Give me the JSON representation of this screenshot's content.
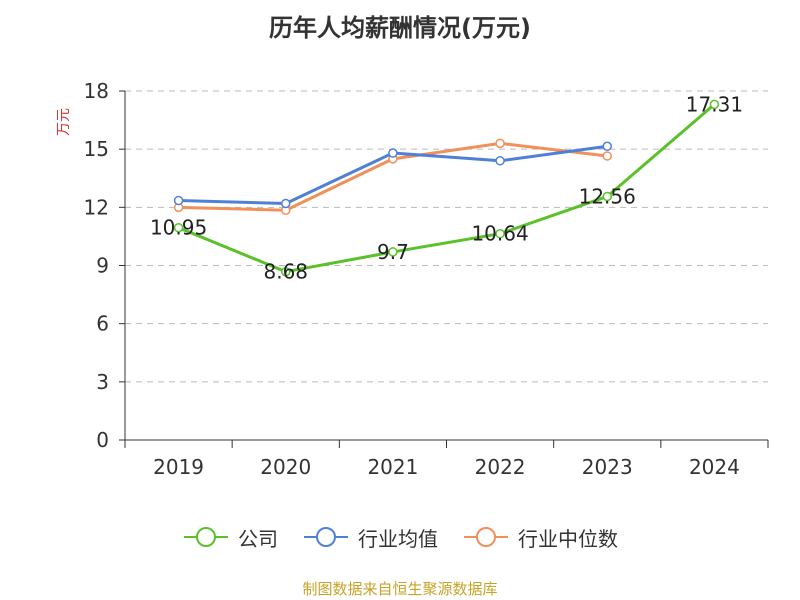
{
  "title": "历年人均薪酬情况(万元)",
  "source": "制图数据来自恒生聚源数据库",
  "chart_data": {
    "type": "line",
    "title": "历年人均薪酬情况(万元)",
    "ylabel": "万元",
    "xlabel": "",
    "categories": [
      "2019",
      "2020",
      "2021",
      "2022",
      "2023",
      "2024"
    ],
    "ylim": [
      0,
      18
    ],
    "yticks": [
      0,
      3,
      6,
      9,
      12,
      15,
      18
    ],
    "grid": true,
    "legend_position": "bottom",
    "series": [
      {
        "name": "公司",
        "color": "#5bc12a",
        "values": [
          10.95,
          8.68,
          9.7,
          10.64,
          12.56,
          17.31
        ],
        "labels": [
          "10.95",
          "8.68",
          "9.7",
          "10.64",
          "12.56",
          "17.31"
        ]
      },
      {
        "name": "行业均值",
        "color": "#4f80d8",
        "values": [
          12.35,
          12.2,
          14.8,
          14.4,
          15.15,
          null
        ]
      },
      {
        "name": "行业中位数",
        "color": "#f0905a",
        "values": [
          12.0,
          11.85,
          14.5,
          15.3,
          14.65,
          null
        ]
      }
    ]
  }
}
